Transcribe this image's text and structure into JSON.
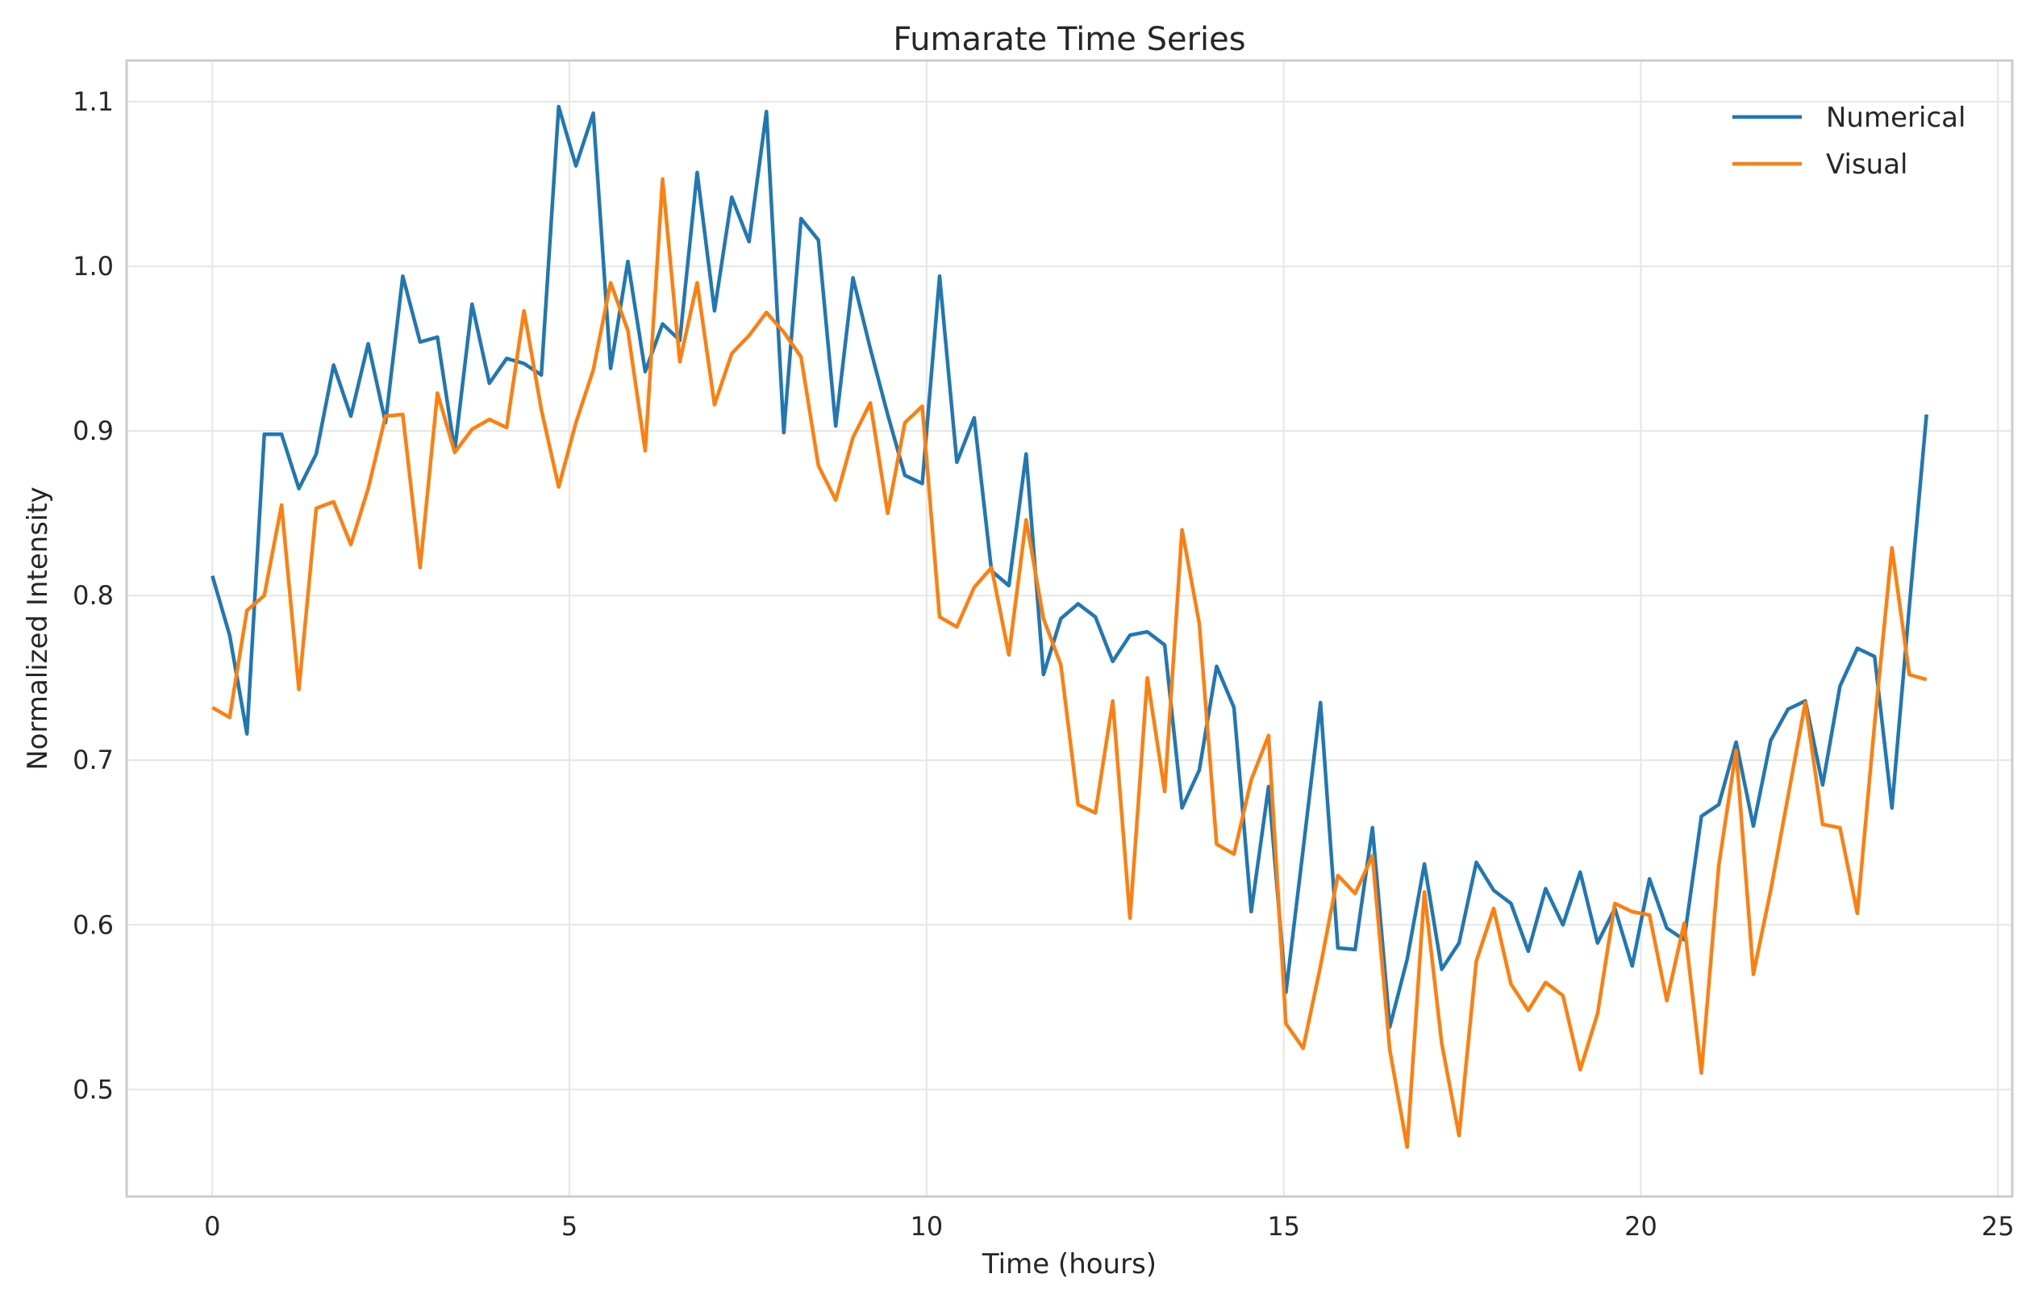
{
  "chart_data": {
    "type": "line",
    "title": "Fumarate Time Series",
    "xlabel": "Time (hours)",
    "ylabel": "Normalized Intensity",
    "xlim": [
      -1.2,
      25.2
    ],
    "ylim": [
      0.435,
      1.125
    ],
    "xticks": [
      0,
      5,
      10,
      15,
      20,
      25
    ],
    "yticks": [
      0.5,
      0.6,
      0.7,
      0.8,
      0.9,
      1.0,
      1.1
    ],
    "ytick_labels": [
      "0.5",
      "0.6",
      "0.7",
      "0.8",
      "0.9",
      "1.0",
      "1.1"
    ],
    "grid": true,
    "legend_position": "top-right",
    "x_start": 0,
    "x_end": 24,
    "series": [
      {
        "name": "Numerical",
        "color": "#1f77b4",
        "values": [
          0.812,
          0.776,
          0.716,
          0.898,
          0.898,
          0.865,
          0.886,
          0.94,
          0.909,
          0.953,
          0.905,
          0.994,
          0.954,
          0.957,
          0.888,
          0.977,
          0.929,
          0.944,
          0.941,
          0.934,
          1.097,
          1.061,
          1.093,
          0.938,
          1.003,
          0.936,
          0.965,
          0.955,
          1.057,
          0.973,
          1.042,
          1.015,
          1.094,
          0.899,
          1.029,
          1.016,
          0.903,
          0.993,
          0.95,
          0.91,
          0.873,
          0.868,
          0.994,
          0.881,
          0.908,
          0.815,
          0.806,
          0.886,
          0.752,
          0.786,
          0.795,
          0.787,
          0.76,
          0.776,
          0.778,
          0.77,
          0.671,
          0.694,
          0.757,
          0.732,
          0.608,
          0.684,
          0.559,
          0.646,
          0.735,
          0.586,
          0.585,
          0.659,
          0.538,
          0.579,
          0.637,
          0.573,
          0.589,
          0.638,
          0.621,
          0.613,
          0.584,
          0.622,
          0.6,
          0.632,
          0.589,
          0.61,
          0.575,
          0.628,
          0.598,
          0.591,
          0.666,
          0.673,
          0.711,
          0.66,
          0.712,
          0.731,
          0.736,
          0.685,
          0.745,
          0.768,
          0.763,
          0.671,
          0.793,
          0.91
        ]
      },
      {
        "name": "Visual",
        "color": "#ff7f0e",
        "values": [
          0.732,
          0.726,
          0.791,
          0.8,
          0.855,
          0.743,
          0.853,
          0.857,
          0.831,
          0.865,
          0.909,
          0.91,
          0.817,
          0.923,
          0.887,
          0.901,
          0.907,
          0.902,
          0.973,
          0.913,
          0.866,
          0.905,
          0.937,
          0.99,
          0.961,
          0.888,
          1.053,
          0.942,
          0.99,
          0.916,
          0.947,
          0.958,
          0.972,
          0.96,
          0.945,
          0.879,
          0.858,
          0.896,
          0.917,
          0.85,
          0.905,
          0.915,
          0.787,
          0.781,
          0.805,
          0.817,
          0.764,
          0.846,
          0.786,
          0.758,
          0.673,
          0.668,
          0.736,
          0.604,
          0.75,
          0.681,
          0.84,
          0.783,
          0.649,
          0.643,
          0.688,
          0.715,
          0.54,
          0.525,
          0.575,
          0.63,
          0.619,
          0.642,
          0.524,
          0.465,
          0.62,
          0.528,
          0.472,
          0.578,
          0.61,
          0.564,
          0.548,
          0.565,
          0.557,
          0.512,
          0.546,
          0.613,
          0.608,
          0.606,
          0.554,
          0.601,
          0.51,
          0.636,
          0.706,
          0.57,
          0.621,
          0.678,
          0.735,
          0.661,
          0.659,
          0.607,
          0.722,
          0.829,
          0.752,
          0.749
        ]
      }
    ]
  }
}
